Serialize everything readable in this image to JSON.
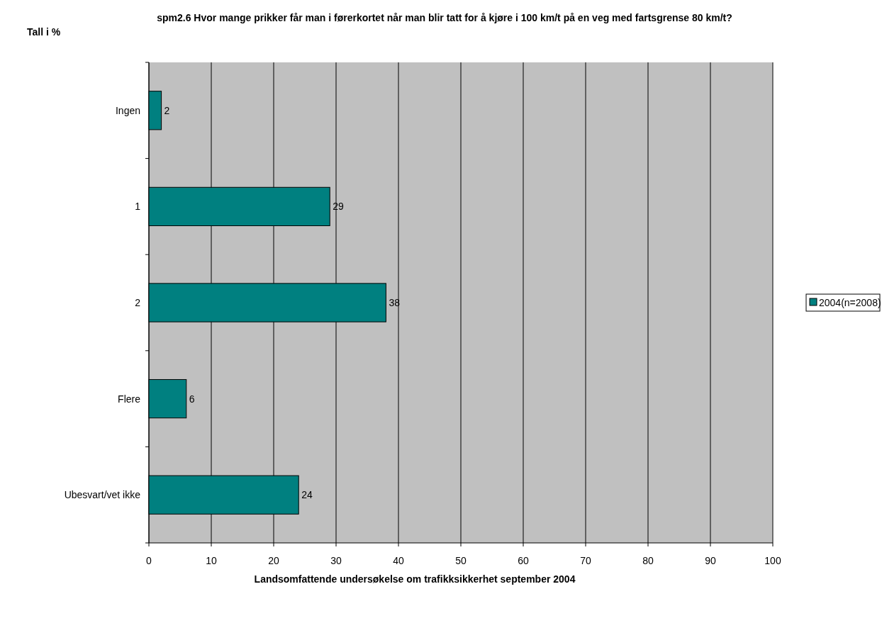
{
  "chart_data": {
    "type": "bar",
    "orientation": "horizontal",
    "title": "spm2.6 Hvor mange prikker får man i førerkortet når man blir tatt for å kjøre i 100 km/t på en veg med fartsgrense 80 km/t?",
    "ylabel": "Tall i %",
    "annotations": [
      "Landsomfattende undersøkelse om trafikksikkerhet september 2004"
    ],
    "categories": [
      "Ingen",
      "1",
      "2",
      "Flere",
      "Ubesvart/vet ikke"
    ],
    "series": [
      {
        "name": "2004(n=2008)",
        "color": "#008080",
        "values": [
          2,
          29,
          38,
          6,
          24
        ]
      }
    ],
    "xlim": [
      0,
      100
    ],
    "xticks": [
      0,
      10,
      20,
      30,
      40,
      50,
      60,
      70,
      80,
      90,
      100
    ],
    "grid": "x",
    "legend": "right",
    "data_labels": true
  }
}
